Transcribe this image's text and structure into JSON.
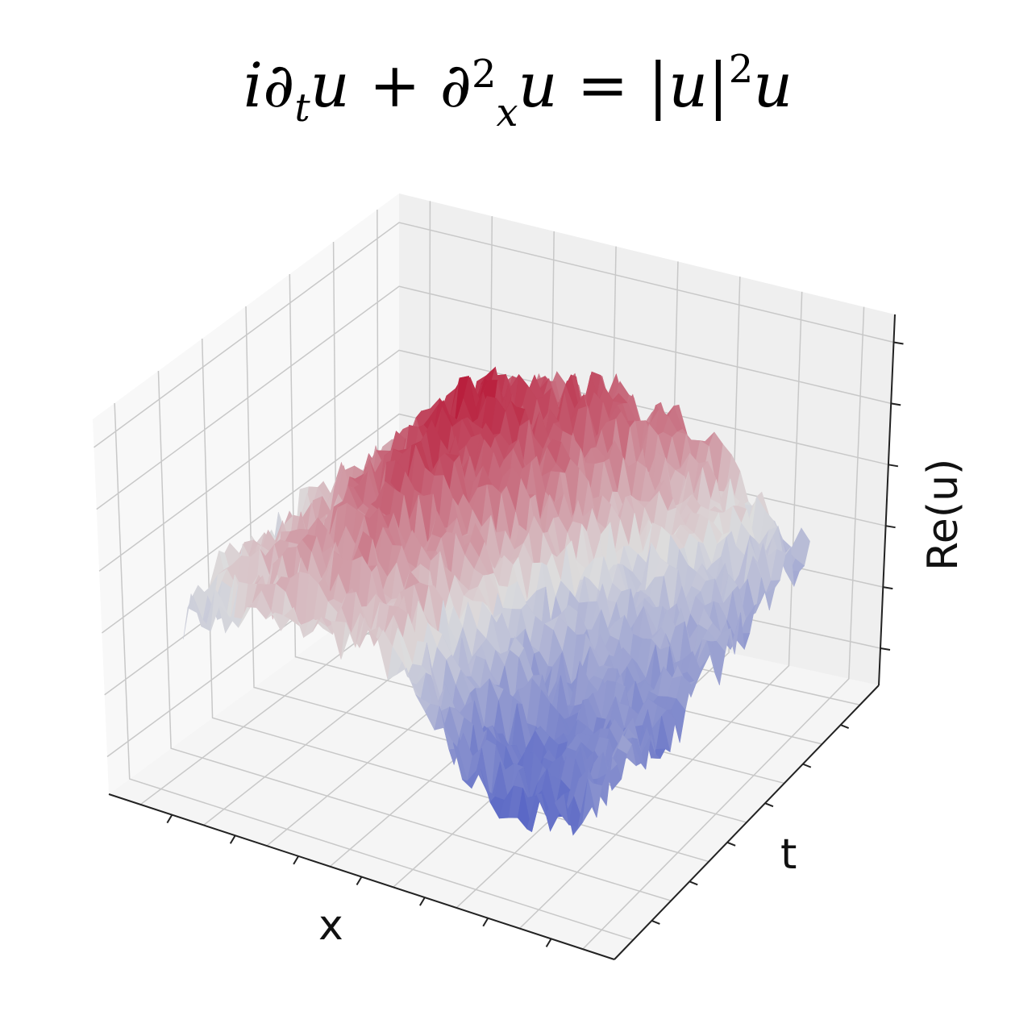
{
  "chart_data": {
    "type": "surface",
    "title_parts": {
      "i": "i",
      "d1": "∂",
      "t_sub": "t",
      "u1": "u",
      "plus": " + ",
      "d2": "∂",
      "sq": "2",
      "x_sub": "x",
      "u2": "u",
      "eq": " = |",
      "u3": "u",
      "bar": "|",
      "sq2": "2",
      "u4": "u"
    },
    "title": "i∂_t u + ∂_x^2 u = |u|^2 u",
    "xlabel": "x",
    "ylabel": "t",
    "zlabel": "Re(u)",
    "colormap": "coolwarm",
    "tick_labels_shown": false,
    "grid": true,
    "x_ticks": 7,
    "t_ticks": 6,
    "z_ticks": 6,
    "zlim": [
      -1,
      1
    ],
    "z_grid_rows_t_cols_x": [
      [
        -0.1,
        0.0,
        0.1,
        0.0,
        -0.6,
        -0.8,
        -0.6
      ],
      [
        0.0,
        0.2,
        0.35,
        0.1,
        -0.6,
        -0.7,
        -0.5
      ],
      [
        -0.1,
        0.3,
        0.6,
        0.2,
        -0.4,
        -0.5,
        -0.6
      ],
      [
        0.0,
        0.4,
        0.8,
        0.4,
        -0.2,
        -0.4,
        -0.5
      ],
      [
        -0.2,
        0.3,
        0.9,
        0.6,
        0.1,
        -0.2,
        -0.4
      ],
      [
        -0.3,
        0.1,
        0.6,
        0.7,
        0.3,
        0.0,
        -0.3
      ],
      [
        -0.3,
        0.0,
        0.4,
        0.5,
        0.4,
        0.1,
        -0.2
      ]
    ],
    "colors": {
      "low": "#3b4cc0",
      "mid": "#dddddd",
      "high": "#b40426",
      "pane": "#f2f2f2",
      "grid": "#c8c8c8"
    }
  }
}
